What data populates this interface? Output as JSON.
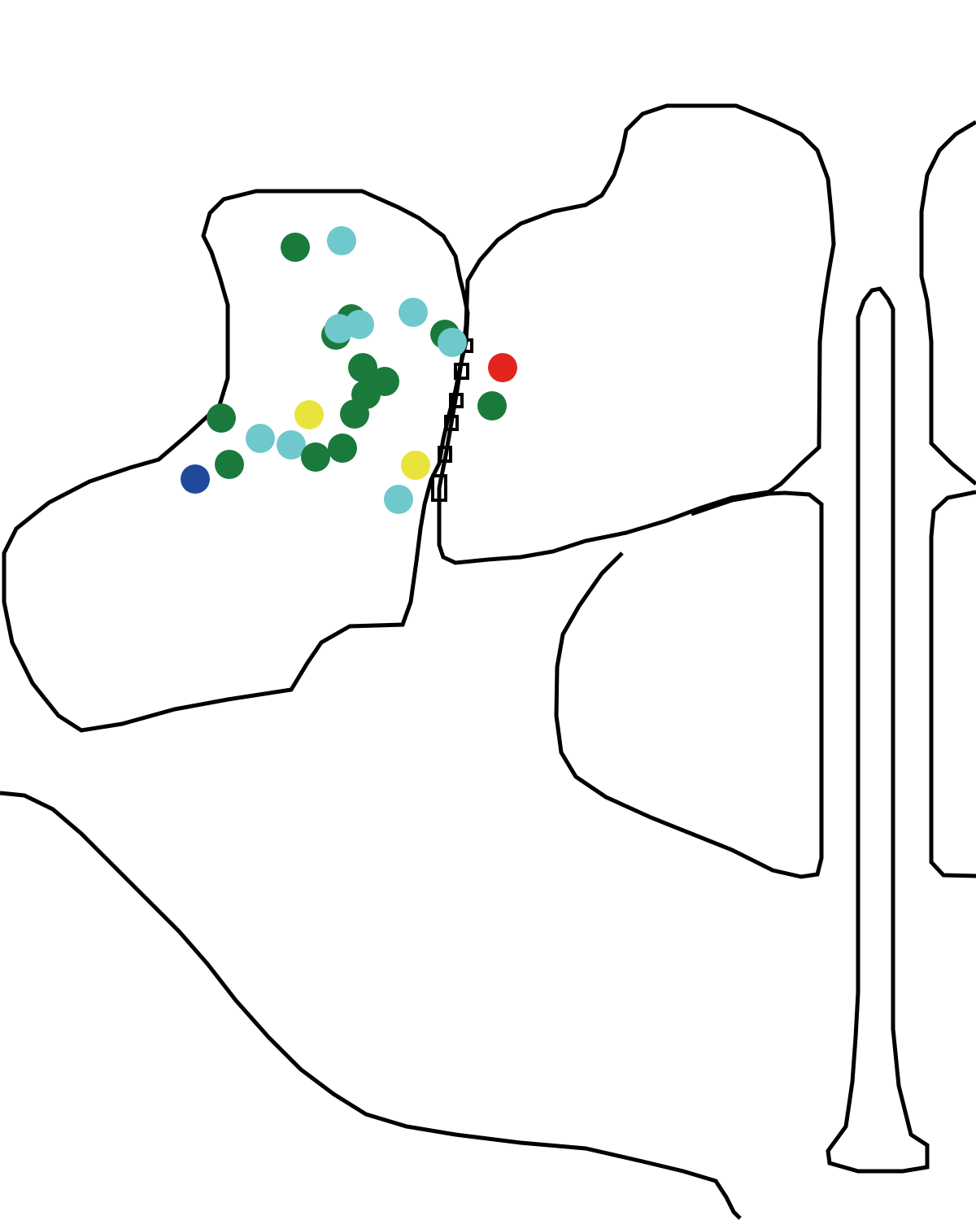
{
  "diagram": {
    "background": "#ffffff",
    "outline_color": "#000000",
    "marker_legend": {
      "dark-green": "#1a7a3c",
      "light-cyan": "#6fc8cc",
      "yellow": "#e9e43c",
      "red": "#e3241d",
      "blue": "#1f4a9b"
    },
    "markers": [
      {
        "id": "m01",
        "color": "dark-green"
      },
      {
        "id": "m02",
        "color": "light-cyan"
      },
      {
        "id": "m03",
        "color": "dark-green"
      },
      {
        "id": "m04",
        "color": "dark-green"
      },
      {
        "id": "m05",
        "color": "light-cyan"
      },
      {
        "id": "m06",
        "color": "light-cyan"
      },
      {
        "id": "m07",
        "color": "light-cyan"
      },
      {
        "id": "m08",
        "color": "dark-green"
      },
      {
        "id": "m09",
        "color": "light-cyan"
      },
      {
        "id": "m10",
        "color": "dark-green"
      },
      {
        "id": "m11",
        "color": "dark-green"
      },
      {
        "id": "m12",
        "color": "dark-green"
      },
      {
        "id": "m13",
        "color": "dark-green"
      },
      {
        "id": "m14",
        "color": "red"
      },
      {
        "id": "m15",
        "color": "dark-green"
      },
      {
        "id": "m16",
        "color": "dark-green"
      },
      {
        "id": "m17",
        "color": "yellow"
      },
      {
        "id": "m18",
        "color": "light-cyan"
      },
      {
        "id": "m19",
        "color": "light-cyan"
      },
      {
        "id": "m20",
        "color": "dark-green"
      },
      {
        "id": "m21",
        "color": "dark-green"
      },
      {
        "id": "m22",
        "color": "dark-green"
      },
      {
        "id": "m23",
        "color": "blue"
      },
      {
        "id": "m24",
        "color": "yellow"
      },
      {
        "id": "m25",
        "color": "light-cyan"
      }
    ]
  }
}
